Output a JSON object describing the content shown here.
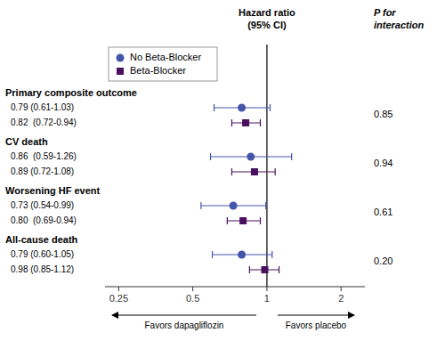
{
  "chart_data": {
    "type": "forest",
    "xlabel": "Hazard ratio\n(95% CI)",
    "categories": [
      "Primary composite outcome",
      "CV death",
      "Worsening HF event",
      "All-cause death"
    ],
    "series": [
      {
        "name": "No Beta-Blocker",
        "color": "#4455aa",
        "marker": "circle",
        "values": [
          0.79,
          0.86,
          0.73,
          0.79
        ],
        "ci_low": [
          0.61,
          0.59,
          0.54,
          0.6
        ],
        "ci_high": [
          1.03,
          1.26,
          0.99,
          1.05
        ],
        "value_labels": [
          "0.79 (0.61-1.03)",
          "0.86  (0.59-1.26)",
          "0.73 (0.54-0.99)",
          "0.79 (0.60-1.05)"
        ]
      },
      {
        "name": "Beta-Blocker",
        "color": "#4a1060",
        "marker": "square",
        "values": [
          0.82,
          0.89,
          0.8,
          0.98
        ],
        "ci_low": [
          0.72,
          0.72,
          0.69,
          0.85
        ],
        "ci_high": [
          0.94,
          1.08,
          0.94,
          1.12
        ],
        "value_labels": [
          "0.82  (0.72-0.94)",
          "0.89 (0.72-1.08)",
          "0.80  (0.69-0.94)",
          "0.98 (0.85-1.12)"
        ]
      }
    ],
    "p_interaction": {
      "header": "P for\ninteraction",
      "values": [
        0.85,
        0.94,
        0.61,
        0.2
      ],
      "value_labels": [
        "0.85",
        "0.94",
        "0.61",
        "0.20"
      ]
    },
    "reference_line": 1.0,
    "annotations": [
      "Favors dapagliflozin",
      "Favors placebo"
    ],
    "log": "x",
    "xlim": [
      0.22,
      2.5
    ],
    "xticks": [
      0.25,
      0.5,
      1.0,
      2.0
    ],
    "legend": "upper left",
    "grid": false
  }
}
